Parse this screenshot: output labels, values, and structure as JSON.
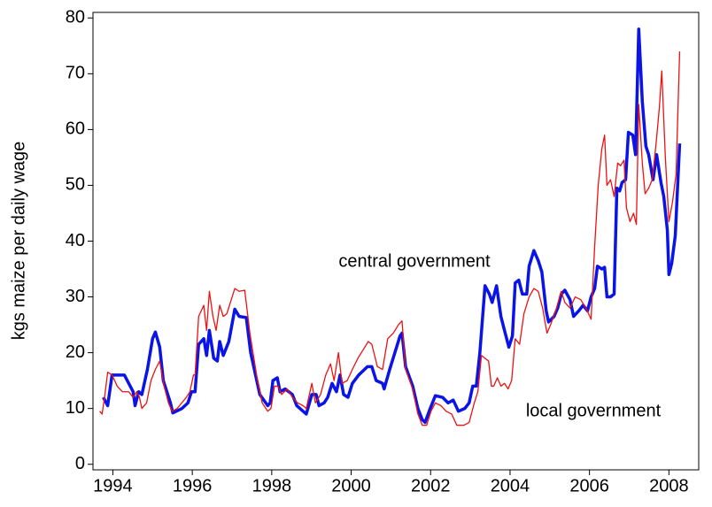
{
  "chart_data": {
    "type": "line",
    "y_label": "kgs maize per daily wage",
    "annotations": [
      "central government",
      "local government"
    ],
    "xlim": [
      1993.5,
      2008.75
    ],
    "xticks": [
      1994,
      1996,
      1998,
      2000,
      2002,
      2004,
      2006,
      2008
    ],
    "ylim": [
      -1,
      81
    ],
    "yticks": [
      0,
      10,
      20,
      30,
      40,
      50,
      60,
      70,
      80
    ],
    "grid": false,
    "series": [
      {
        "name": "central government",
        "color": "#0a14e6",
        "width": 3.5,
        "x": [
          1993.76,
          1993.87,
          1993.98,
          1994.29,
          1994.51,
          1994.56,
          1994.65,
          1994.73,
          1994.87,
          1995.0,
          1995.07,
          1995.18,
          1995.27,
          1995.45,
          1995.51,
          1995.74,
          1995.89,
          1995.98,
          1996.07,
          1996.16,
          1996.29,
          1996.36,
          1996.43,
          1996.54,
          1996.63,
          1996.69,
          1996.78,
          1996.92,
          1997.07,
          1997.18,
          1997.36,
          1997.47,
          1997.7,
          1997.9,
          1997.96,
          1998.03,
          1998.14,
          1998.21,
          1998.34,
          1998.52,
          1998.63,
          1998.79,
          1998.87,
          1999.01,
          1999.12,
          1999.19,
          1999.32,
          1999.41,
          1999.52,
          1999.63,
          1999.72,
          1999.81,
          1999.92,
          2000.03,
          2000.19,
          2000.41,
          2000.52,
          2000.63,
          2000.79,
          2000.83,
          2000.97,
          2001.1,
          2001.23,
          2001.28,
          2001.37,
          2001.55,
          2001.68,
          2001.79,
          2001.86,
          2001.99,
          2002.12,
          2002.3,
          2002.44,
          2002.57,
          2002.7,
          2002.86,
          2002.97,
          2003.06,
          2003.15,
          2003.24,
          2003.37,
          2003.48,
          2003.55,
          2003.66,
          2003.77,
          2003.86,
          2003.97,
          2004.06,
          2004.13,
          2004.22,
          2004.31,
          2004.42,
          2004.48,
          2004.6,
          2004.71,
          2004.8,
          2004.91,
          2004.97,
          2005.11,
          2005.2,
          2005.29,
          2005.38,
          2005.51,
          2005.6,
          2005.73,
          2005.84,
          2005.95,
          2006.04,
          2006.13,
          2006.2,
          2006.31,
          2006.38,
          2006.44,
          2006.53,
          2006.62,
          2006.69,
          2006.76,
          2006.82,
          2006.91,
          2006.98,
          2007.09,
          2007.16,
          2007.24,
          2007.33,
          2007.42,
          2007.49,
          2007.6,
          2007.69,
          2007.8,
          2007.87,
          2007.96,
          2008.0,
          2008.07,
          2008.16,
          2008.27
        ],
        "values": [
          12,
          10.5,
          16,
          16,
          13,
          10.5,
          13,
          12.5,
          17,
          22.5,
          23.7,
          21,
          15,
          11,
          9.2,
          10,
          11,
          13,
          13,
          21.5,
          22.5,
          19.5,
          24,
          19,
          18.5,
          22,
          19.5,
          22,
          27.8,
          26.5,
          26.3,
          20,
          12.5,
          10.5,
          11,
          15,
          15.5,
          13,
          13.5,
          12.5,
          10.5,
          9.5,
          9,
          12.5,
          12.5,
          10.5,
          11,
          12,
          14.5,
          13,
          16,
          12.5,
          12,
          14.5,
          16,
          17.5,
          17.5,
          15,
          14.5,
          13.5,
          17,
          20,
          23,
          23.5,
          17.5,
          14,
          10,
          8,
          7.5,
          10,
          12.3,
          12,
          11,
          11.5,
          9.5,
          10,
          11,
          14,
          14,
          20,
          32,
          30.5,
          29,
          32,
          26.5,
          24,
          21,
          23,
          32.5,
          33,
          30.5,
          30.5,
          35.5,
          38.3,
          36.5,
          34.5,
          27.5,
          25.5,
          26.5,
          28,
          30.5,
          31.2,
          29.5,
          26.5,
          27.5,
          28.5,
          27.5,
          30,
          31.5,
          35.5,
          35,
          35.3,
          30,
          30,
          30.5,
          49.5,
          49,
          50.5,
          51,
          59.5,
          59,
          55.5,
          78,
          65,
          57,
          55.5,
          51,
          55.5,
          50.5,
          48,
          42,
          34,
          36,
          41,
          57.5
        ]
      },
      {
        "name": "local government",
        "color": "#ee1111",
        "width": 1.3,
        "x": [
          1993.67,
          1993.73,
          1993.8,
          1993.87,
          1993.98,
          1994.11,
          1994.24,
          1994.4,
          1994.51,
          1994.6,
          1994.67,
          1994.73,
          1994.85,
          1994.96,
          1995.07,
          1995.18,
          1995.29,
          1995.4,
          1995.49,
          1995.62,
          1995.85,
          1995.94,
          1996.03,
          1996.07,
          1996.16,
          1996.29,
          1996.36,
          1996.43,
          1996.52,
          1996.6,
          1996.69,
          1996.78,
          1996.87,
          1996.96,
          1997.07,
          1997.18,
          1997.32,
          1997.45,
          1997.63,
          1997.76,
          1997.9,
          1997.98,
          1998.07,
          1998.16,
          1998.25,
          1998.39,
          1998.52,
          1998.65,
          1998.79,
          1998.87,
          1999.01,
          1999.1,
          1999.23,
          1999.36,
          1999.48,
          1999.57,
          1999.68,
          1999.77,
          1999.9,
          2000.03,
          2000.17,
          2000.3,
          2000.43,
          2000.52,
          2000.66,
          2000.79,
          2000.92,
          2001.06,
          2001.19,
          2001.28,
          2001.37,
          2001.55,
          2001.68,
          2001.79,
          2001.9,
          2002.01,
          2002.12,
          2002.26,
          2002.39,
          2002.53,
          2002.66,
          2002.84,
          2002.97,
          2003.1,
          2003.19,
          2003.28,
          2003.37,
          2003.46,
          2003.53,
          2003.59,
          2003.68,
          2003.77,
          2003.86,
          2003.95,
          2004.04,
          2004.13,
          2004.24,
          2004.35,
          2004.48,
          2004.6,
          2004.71,
          2004.82,
          2004.93,
          2005.02,
          2005.15,
          2005.29,
          2005.38,
          2005.51,
          2005.64,
          2005.78,
          2005.91,
          2006.04,
          2006.13,
          2006.22,
          2006.31,
          2006.38,
          2006.44,
          2006.53,
          2006.62,
          2006.71,
          2006.78,
          2006.87,
          2006.93,
          2007.02,
          2007.11,
          2007.18,
          2007.24,
          2007.33,
          2007.4,
          2007.49,
          2007.58,
          2007.67,
          2007.76,
          2007.82,
          2007.91,
          2008.0,
          2008.09,
          2008.18,
          2008.27
        ],
        "values": [
          9.5,
          9,
          12.5,
          16.5,
          16,
          14,
          13,
          13,
          12,
          13,
          12,
          10,
          11,
          15,
          17,
          18.5,
          14,
          11,
          9.5,
          10,
          12,
          13,
          16,
          16,
          26.5,
          28.5,
          24,
          31,
          26.5,
          24,
          28.5,
          26.5,
          27,
          29,
          31.5,
          31,
          31.2,
          23.5,
          15.5,
          11,
          9.5,
          10,
          14,
          14,
          12.5,
          13.5,
          12,
          11,
          10.5,
          10,
          14.5,
          11,
          12.5,
          16,
          18,
          15,
          20,
          14.5,
          15,
          17,
          19,
          20.5,
          22,
          21.5,
          17.5,
          17,
          22.5,
          23.5,
          25,
          25.7,
          17,
          13.5,
          9,
          7,
          7,
          9.5,
          11,
          10.5,
          9.5,
          9,
          7,
          7,
          7.5,
          11,
          13,
          19.5,
          19,
          18.5,
          14,
          14,
          15.5,
          14,
          14.5,
          13.5,
          15,
          22.5,
          21.5,
          27,
          30,
          31.5,
          31,
          28,
          23.5,
          25,
          27.5,
          31,
          29,
          28,
          30,
          29.5,
          28,
          26,
          39,
          50,
          56.5,
          59,
          50,
          51,
          48,
          54,
          53.5,
          54.5,
          46,
          43.5,
          45,
          43,
          64.5,
          54,
          48.5,
          49.5,
          51,
          57,
          64,
          70.5,
          55,
          43.5,
          47,
          52,
          74
        ]
      }
    ]
  }
}
